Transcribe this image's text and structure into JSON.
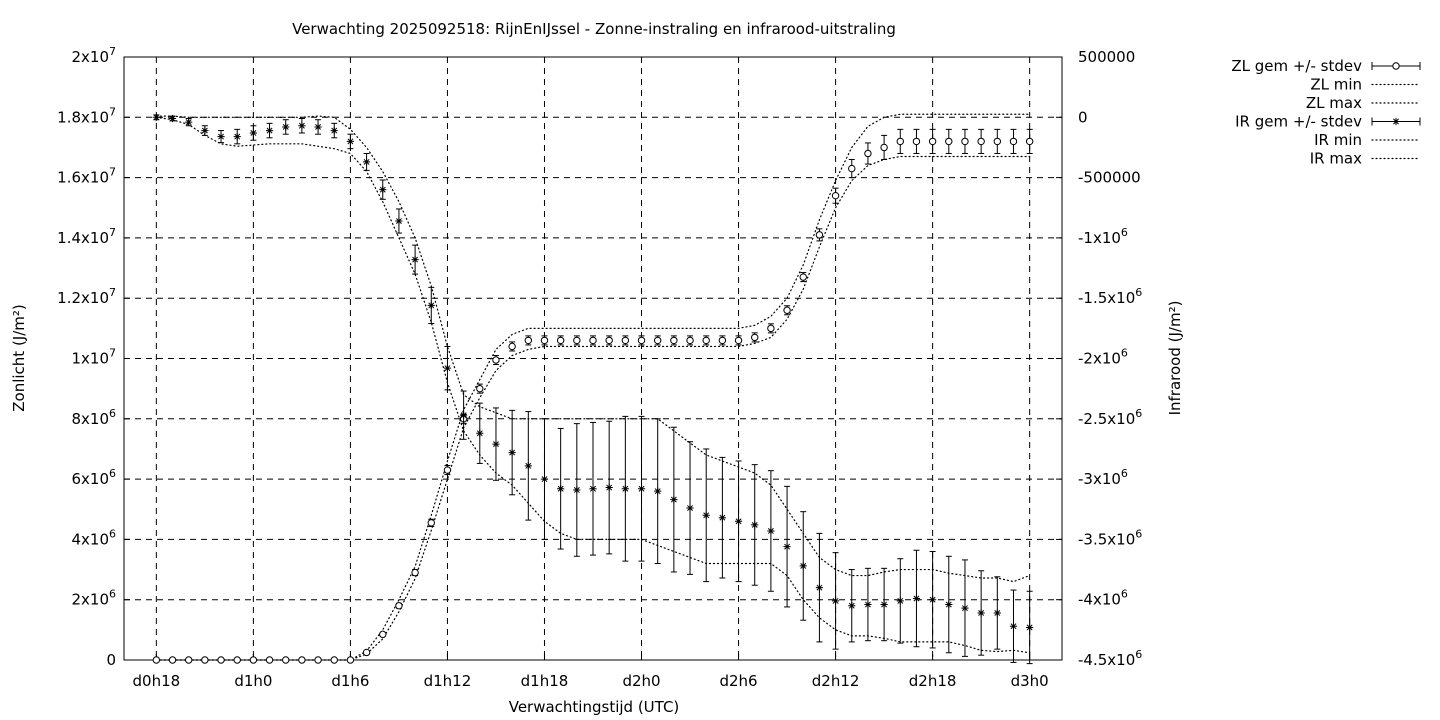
{
  "chart_data": {
    "type": "line",
    "title": "Verwachting 2025092518: RijnEnIJssel - Zonne-instraling en infrarood-uitstraling",
    "xlabel": "Verwachtingstijd (UTC)",
    "ylabel": "Zonlicht (J/m²)",
    "y2label": "Infrarood (J/m²)",
    "x_ticks": [
      "d0h18",
      "d1h0",
      "d1h6",
      "d1h12",
      "d1h18",
      "d2h0",
      "d2h6",
      "d2h12",
      "d2h18",
      "d3h0"
    ],
    "x_tick_hours": [
      18,
      24,
      30,
      36,
      42,
      48,
      54,
      60,
      66,
      72
    ],
    "xlim": [
      16,
      74
    ],
    "ylim": [
      0,
      20000000
    ],
    "y2lim": [
      -4500000,
      500000
    ],
    "y_ticks": [
      {
        "v": 0,
        "m": "0",
        "e": ""
      },
      {
        "v": 2000000,
        "m": "2x10",
        "e": "6"
      },
      {
        "v": 4000000,
        "m": "4x10",
        "e": "6"
      },
      {
        "v": 6000000,
        "m": "6x10",
        "e": "6"
      },
      {
        "v": 8000000,
        "m": "8x10",
        "e": "6"
      },
      {
        "v": 10000000,
        "m": "1x10",
        "e": "7"
      },
      {
        "v": 12000000,
        "m": "1.2x10",
        "e": "7"
      },
      {
        "v": 14000000,
        "m": "1.4x10",
        "e": "7"
      },
      {
        "v": 16000000,
        "m": "1.6x10",
        "e": "7"
      },
      {
        "v": 18000000,
        "m": "1.8x10",
        "e": "7"
      },
      {
        "v": 20000000,
        "m": "2x10",
        "e": "7"
      }
    ],
    "y2_ticks": [
      {
        "v": 500000,
        "m": "500000",
        "e": ""
      },
      {
        "v": 0,
        "m": "0",
        "e": ""
      },
      {
        "v": -500000,
        "m": "-500000",
        "e": ""
      },
      {
        "v": -1000000,
        "m": "-1x10",
        "e": "6"
      },
      {
        "v": -1500000,
        "m": "-1.5x10",
        "e": "6"
      },
      {
        "v": -2000000,
        "m": "-2x10",
        "e": "6"
      },
      {
        "v": -2500000,
        "m": "-2.5x10",
        "e": "6"
      },
      {
        "v": -3000000,
        "m": "-3x10",
        "e": "6"
      },
      {
        "v": -3500000,
        "m": "-3.5x10",
        "e": "6"
      },
      {
        "v": -4000000,
        "m": "-4x10",
        "e": "6"
      },
      {
        "v": -4500000,
        "m": "-4.5x10",
        "e": "6"
      }
    ],
    "grid": true,
    "legend_position": "outside top-right",
    "legend": [
      "ZL gem +/- stdev",
      "ZL min",
      "ZL max",
      "IR gem +/- stdev",
      "IR min",
      "IR max"
    ],
    "x_hours": [
      18,
      19,
      20,
      21,
      22,
      23,
      24,
      25,
      26,
      27,
      28,
      29,
      30,
      31,
      32,
      33,
      34,
      35,
      36,
      37,
      38,
      39,
      40,
      41,
      42,
      43,
      44,
      45,
      46,
      47,
      48,
      49,
      50,
      51,
      52,
      53,
      54,
      55,
      56,
      57,
      58,
      59,
      60,
      61,
      62,
      63,
      64,
      65,
      66,
      67,
      68,
      69,
      70,
      71,
      72
    ],
    "series": [
      {
        "name": "ZL gem +/- stdev",
        "axis": "y",
        "marker": "circle",
        "mean": [
          0,
          0,
          0,
          0,
          0,
          0,
          0,
          0,
          0,
          0,
          0,
          0,
          0,
          250000,
          850000,
          1800000,
          2900000,
          4550000,
          6300000,
          8000000,
          9000000,
          9950000,
          10400000,
          10600000,
          10600000,
          10600000,
          10600000,
          10600000,
          10600000,
          10600000,
          10600000,
          10600000,
          10600000,
          10600000,
          10600000,
          10600000,
          10600000,
          10700000,
          11000000,
          11600000,
          12700000,
          14100000,
          15400000,
          16300000,
          16800000,
          17000000,
          17200000,
          17200000,
          17200000,
          17200000,
          17200000,
          17200000,
          17200000,
          17200000,
          17200000
        ],
        "stdev": [
          0,
          0,
          0,
          0,
          0,
          0,
          0,
          0,
          0,
          0,
          0,
          0,
          0,
          30000,
          60000,
          80000,
          100000,
          120000,
          150000,
          150000,
          150000,
          150000,
          150000,
          150000,
          150000,
          150000,
          150000,
          150000,
          150000,
          150000,
          150000,
          150000,
          150000,
          150000,
          150000,
          150000,
          150000,
          150000,
          150000,
          150000,
          150000,
          200000,
          250000,
          300000,
          350000,
          400000,
          400000,
          400000,
          400000,
          400000,
          400000,
          400000,
          400000,
          400000,
          400000
        ]
      },
      {
        "name": "ZL min",
        "axis": "y",
        "style": "dotted",
        "values": [
          0,
          0,
          0,
          0,
          0,
          0,
          0,
          0,
          0,
          0,
          0,
          0,
          0,
          200000,
          700000,
          1600000,
          2700000,
          4300000,
          6000000,
          7700000,
          8700000,
          9600000,
          10100000,
          10300000,
          10400000,
          10400000,
          10400000,
          10400000,
          10400000,
          10400000,
          10400000,
          10400000,
          10400000,
          10400000,
          10400000,
          10400000,
          10400000,
          10500000,
          10700000,
          11300000,
          12300000,
          13700000,
          15000000,
          15900000,
          16400000,
          16600000,
          16700000,
          16700000,
          16700000,
          16700000,
          16700000,
          16700000,
          16700000,
          16700000,
          16700000
        ]
      },
      {
        "name": "ZL max",
        "axis": "y",
        "style": "dotted",
        "values": [
          0,
          0,
          0,
          0,
          0,
          0,
          0,
          0,
          0,
          0,
          0,
          0,
          0,
          300000,
          1000000,
          2000000,
          3100000,
          4800000,
          6600000,
          8300000,
          9300000,
          10300000,
          10800000,
          11000000,
          11000000,
          11000000,
          11000000,
          11000000,
          11000000,
          11000000,
          11000000,
          11000000,
          11000000,
          11000000,
          11000000,
          11000000,
          11000000,
          11100000,
          11400000,
          12000000,
          13100000,
          14600000,
          15900000,
          17000000,
          17700000,
          18000000,
          18100000,
          18100000,
          18100000,
          18100000,
          18100000,
          18100000,
          18100000,
          18100000,
          18100000
        ]
      },
      {
        "name": "IR gem +/- stdev",
        "axis": "y2",
        "marker": "star",
        "mean": [
          0,
          -10000,
          -40000,
          -110000,
          -160000,
          -160000,
          -130000,
          -110000,
          -80000,
          -70000,
          -80000,
          -110000,
          -200000,
          -370000,
          -600000,
          -860000,
          -1180000,
          -1560000,
          -2080000,
          -2470000,
          -2620000,
          -2710000,
          -2780000,
          -2890000,
          -3000000,
          -3080000,
          -3090000,
          -3080000,
          -3070000,
          -3080000,
          -3080000,
          -3100000,
          -3170000,
          -3240000,
          -3300000,
          -3320000,
          -3350000,
          -3380000,
          -3430000,
          -3560000,
          -3720000,
          -3900000,
          -4010000,
          -4050000,
          -4040000,
          -4040000,
          -4010000,
          -3990000,
          -4000000,
          -4040000,
          -4070000,
          -4110000,
          -4110000,
          -4220000,
          -4230000
        ],
        "stdev": [
          20000,
          20000,
          30000,
          40000,
          50000,
          60000,
          60000,
          60000,
          60000,
          60000,
          60000,
          60000,
          60000,
          70000,
          80000,
          100000,
          120000,
          150000,
          180000,
          200000,
          250000,
          300000,
          350000,
          450000,
          500000,
          500000,
          550000,
          550000,
          550000,
          600000,
          600000,
          600000,
          600000,
          550000,
          550000,
          500000,
          500000,
          500000,
          500000,
          500000,
          450000,
          450000,
          400000,
          300000,
          300000,
          300000,
          350000,
          400000,
          400000,
          400000,
          400000,
          350000,
          300000,
          300000,
          300000
        ]
      },
      {
        "name": "IR min",
        "axis": "y2",
        "style": "dotted",
        "values": [
          0,
          -20000,
          -60000,
          -150000,
          -220000,
          -240000,
          -230000,
          -220000,
          -220000,
          -220000,
          -240000,
          -260000,
          -300000,
          -450000,
          -700000,
          -1000000,
          -1300000,
          -1700000,
          -2200000,
          -2600000,
          -2800000,
          -2950000,
          -3050000,
          -3200000,
          -3350000,
          -3450000,
          -3500000,
          -3500000,
          -3500000,
          -3500000,
          -3500000,
          -3550000,
          -3600000,
          -3650000,
          -3700000,
          -3700000,
          -3700000,
          -3700000,
          -3700000,
          -3800000,
          -4000000,
          -4150000,
          -4250000,
          -4300000,
          -4300000,
          -4320000,
          -4350000,
          -4350000,
          -4350000,
          -4350000,
          -4380000,
          -4420000,
          -4430000,
          -4420000,
          -4440000
        ]
      },
      {
        "name": "IR max",
        "axis": "y2",
        "style": "dotted",
        "values": [
          10000,
          10000,
          0,
          0,
          0,
          0,
          0,
          0,
          0,
          0,
          10000,
          0,
          -100000,
          -250000,
          -450000,
          -700000,
          -1000000,
          -1400000,
          -1900000,
          -2300000,
          -2400000,
          -2450000,
          -2500000,
          -2500000,
          -2500000,
          -2500000,
          -2500000,
          -2500000,
          -2500000,
          -2500000,
          -2500000,
          -2500000,
          -2600000,
          -2700000,
          -2800000,
          -2850000,
          -2900000,
          -2950000,
          -3050000,
          -3250000,
          -3450000,
          -3650000,
          -3750000,
          -3800000,
          -3800000,
          -3770000,
          -3750000,
          -3750000,
          -3750000,
          -3780000,
          -3800000,
          -3820000,
          -3820000,
          -3850000,
          -3800000
        ]
      }
    ]
  }
}
